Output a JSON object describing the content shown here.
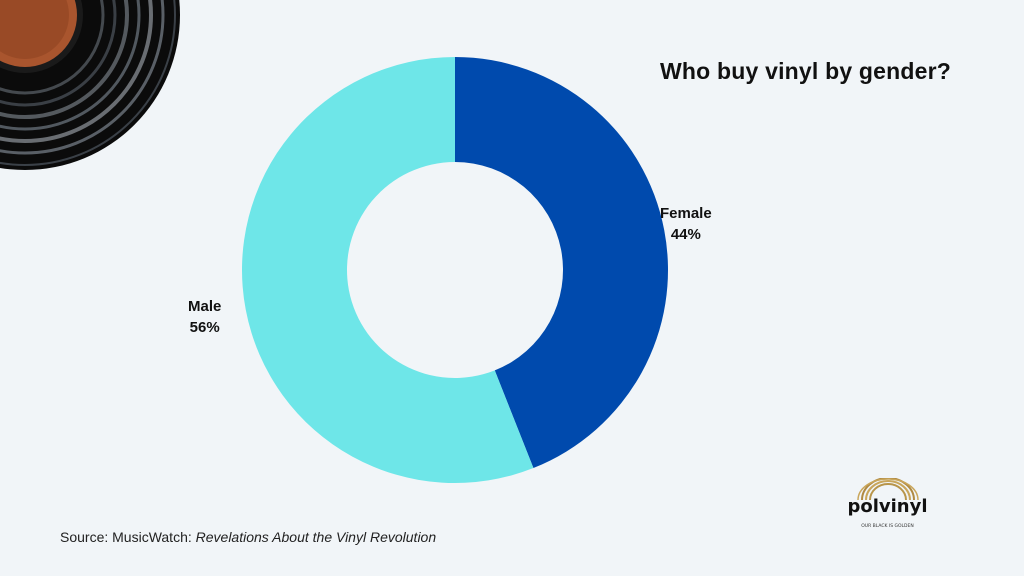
{
  "title": "Who buy vinyl by gender?",
  "source": {
    "prefix": "Source: MusicWatch: ",
    "title": "Revelations About the Vinyl Revolution"
  },
  "logo": {
    "name": "polvinyl",
    "tagline": "OUR BLACK IS GOLDEN"
  },
  "colors": {
    "background": "#f1f5f8",
    "female": "#004aad",
    "male": "#6ee6e8"
  },
  "chart_data": {
    "type": "pie",
    "variant": "donut",
    "title": "Who buy vinyl by gender?",
    "slices": [
      {
        "label": "Female",
        "value": 44,
        "display": "44%",
        "color": "#004aad"
      },
      {
        "label": "Male",
        "value": 56,
        "display": "56%",
        "color": "#6ee6e8"
      }
    ],
    "start": "12 o'clock",
    "direction": "clockwise",
    "legend": "none"
  }
}
